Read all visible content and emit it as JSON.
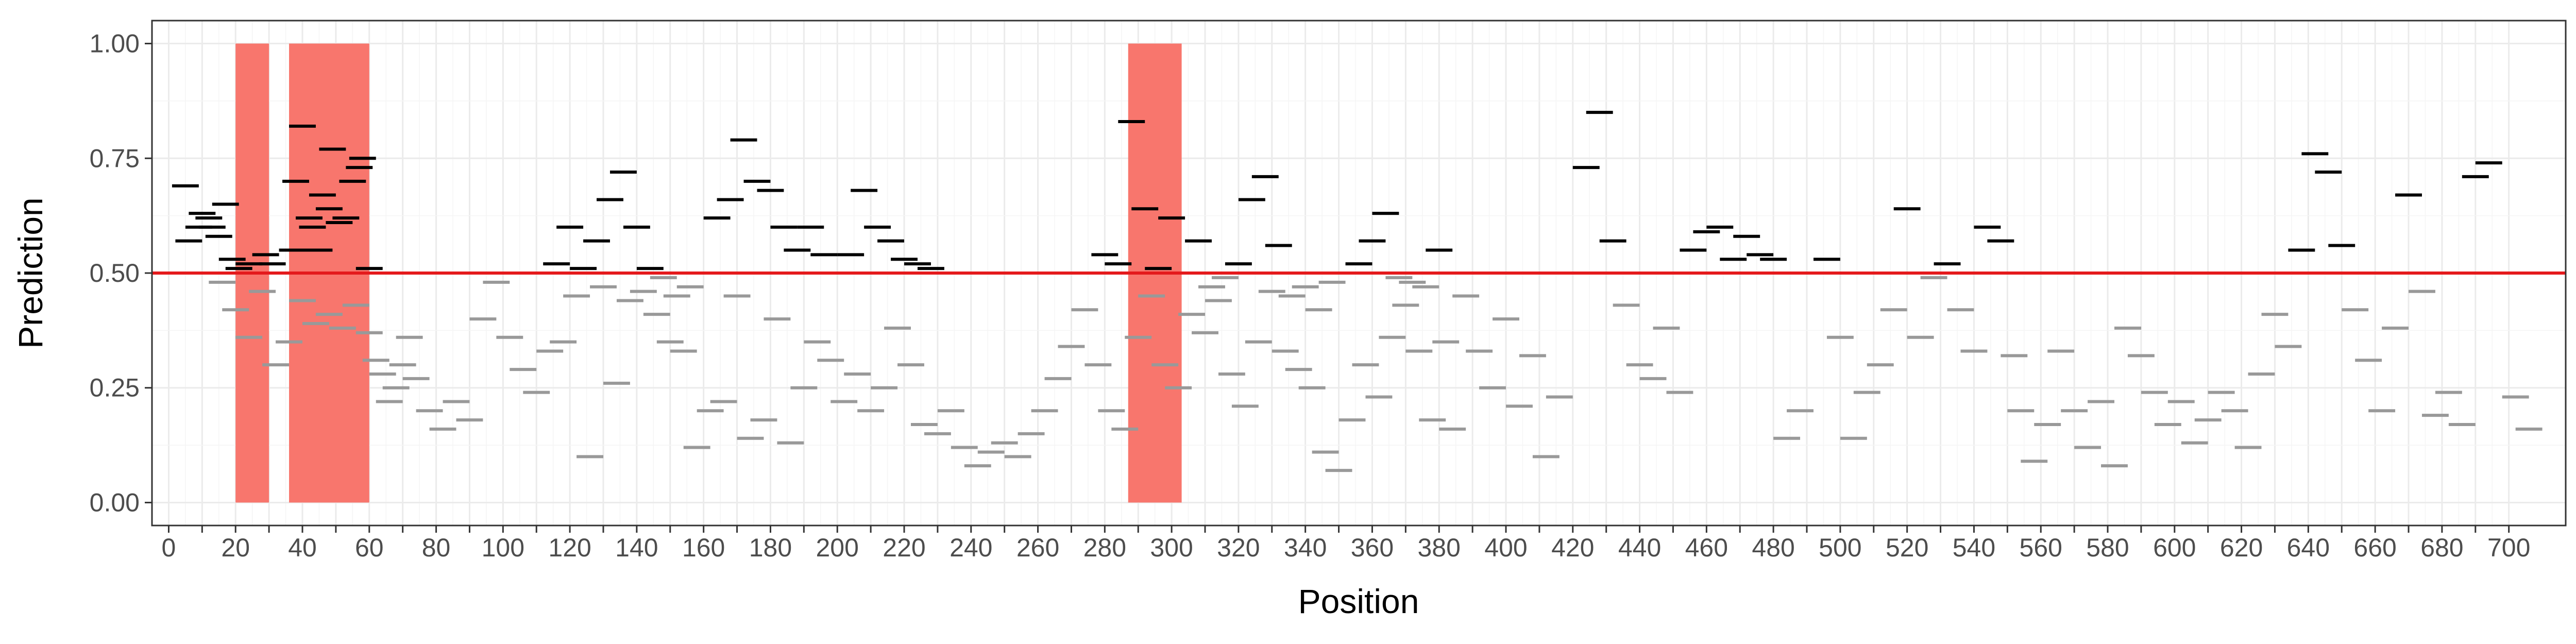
{
  "chart_data": {
    "type": "scatter",
    "title": "",
    "xlabel": "Position",
    "ylabel": "Prediction",
    "xlim": [
      -5,
      717
    ],
    "ylim": [
      -0.05,
      1.05
    ],
    "x_ticks": [
      0,
      10,
      20,
      30,
      40,
      50,
      60,
      70,
      80,
      90,
      100,
      110,
      120,
      130,
      140,
      150,
      160,
      170,
      180,
      190,
      200,
      210,
      220,
      230,
      240,
      250,
      260,
      270,
      280,
      290,
      300,
      310,
      320,
      330,
      340,
      350,
      360,
      370,
      380,
      390,
      400,
      410,
      420,
      430,
      440,
      450,
      460,
      470,
      480,
      490,
      500,
      510,
      520,
      530,
      540,
      550,
      560,
      570,
      580,
      590,
      600,
      610,
      620,
      630,
      640,
      650,
      660,
      670,
      680,
      690,
      700
    ],
    "x_tick_labels": [
      "0",
      "",
      "20",
      "",
      "40",
      "",
      "60",
      "",
      "80",
      "",
      "100",
      "",
      "120",
      "",
      "140",
      "",
      "160",
      "",
      "180",
      "",
      "200",
      "",
      "220",
      "",
      "240",
      "",
      "260",
      "",
      "280",
      "",
      "300",
      "",
      "320",
      "",
      "340",
      "",
      "360",
      "",
      "380",
      "",
      "400",
      "",
      "420",
      "",
      "440",
      "",
      "460",
      "",
      "480",
      "",
      "500",
      "",
      "520",
      "",
      "540",
      "",
      "560",
      "",
      "580",
      "",
      "600",
      "",
      "620",
      "",
      "640",
      "",
      "660",
      "",
      "680",
      "",
      "700"
    ],
    "y_ticks": [
      0,
      0.25,
      0.5,
      0.75,
      1
    ],
    "y_tick_labels": [
      "0.00",
      "0.25",
      "0.50",
      "0.75",
      "1.00"
    ],
    "grid": true,
    "threshold": 0.5,
    "colors": {
      "above_threshold": "#000000",
      "below_threshold": "#999999",
      "threshold_line": "#e41a1c",
      "region": "#f8766d"
    },
    "highlight_regions": [
      [
        20,
        30
      ],
      [
        36,
        60
      ],
      [
        287,
        303
      ]
    ],
    "segment_width": 8,
    "series": [
      {
        "x": [
          5,
          9,
          12,
          15,
          19,
          24,
          29,
          37,
          40,
          43,
          46,
          49,
          53,
          57,
          60
        ],
        "y": [
          0.69,
          0.6,
          0.62,
          0.58,
          0.53,
          0.52,
          0.54,
          0.55,
          0.82,
          0.6,
          0.67,
          0.77,
          0.62,
          0.73,
          0.51
        ]
      },
      {
        "x": [
          6,
          10,
          13,
          17,
          21,
          26,
          31,
          38,
          42,
          45,
          48,
          51,
          55,
          58
        ],
        "y": [
          0.57,
          0.63,
          0.6,
          0.65,
          0.51,
          0.5,
          0.52,
          0.7,
          0.62,
          0.55,
          0.64,
          0.61,
          0.7,
          0.75
        ]
      },
      {
        "x": [
          16,
          20,
          24,
          28,
          32,
          36,
          40,
          44,
          48,
          52,
          56,
          60,
          64,
          68,
          72
        ],
        "y": [
          0.48,
          0.42,
          0.36,
          0.46,
          0.3,
          0.35,
          0.44,
          0.39,
          0.41,
          0.38,
          0.43,
          0.37,
          0.28,
          0.25,
          0.36
        ]
      },
      {
        "x": [
          62,
          66,
          70,
          74,
          78,
          82,
          86,
          90,
          94,
          98,
          102,
          106,
          110,
          114
        ],
        "y": [
          0.31,
          0.22,
          0.3,
          0.27,
          0.2,
          0.16,
          0.22,
          0.18,
          0.4,
          0.48,
          0.36,
          0.29,
          0.24,
          0.33
        ]
      },
      {
        "x": [
          116,
          120,
          124,
          128,
          132,
          136,
          140,
          144,
          148,
          152,
          156,
          160,
          164,
          168,
          172,
          176,
          180,
          184,
          188,
          192,
          196,
          200,
          204,
          208,
          212,
          216,
          220,
          224,
          228
        ],
        "y": [
          0.52,
          0.6,
          0.51,
          0.57,
          0.66,
          0.72,
          0.6,
          0.51,
          0.49,
          0.45,
          0.47,
          0.5,
          0.62,
          0.66,
          0.79,
          0.7,
          0.68,
          0.6,
          0.55,
          0.6,
          0.54,
          0.5,
          0.54,
          0.68,
          0.6,
          0.57,
          0.53,
          0.52,
          0.51
        ]
      },
      {
        "x": [
          118,
          122,
          126,
          130,
          134,
          138,
          142,
          146,
          150,
          154,
          158,
          162,
          166,
          170,
          174,
          178,
          182,
          186,
          190,
          194,
          198,
          202,
          206,
          210,
          214,
          218,
          222,
          226
        ],
        "y": [
          0.35,
          0.45,
          0.1,
          0.47,
          0.26,
          0.44,
          0.46,
          0.41,
          0.35,
          0.33,
          0.12,
          0.2,
          0.22,
          0.45,
          0.14,
          0.18,
          0.4,
          0.13,
          0.25,
          0.35,
          0.31,
          0.22,
          0.28,
          0.2,
          0.25,
          0.38,
          0.3,
          0.17
        ]
      },
      {
        "x": [
          230,
          234,
          238,
          242,
          246,
          250,
          254,
          258,
          262,
          266,
          270,
          274,
          278,
          282,
          286,
          290,
          294,
          298,
          302,
          306,
          310,
          314,
          318,
          322,
          326,
          330,
          334,
          338,
          342,
          346,
          350,
          354,
          358,
          362,
          366,
          370,
          374,
          378,
          382
        ],
        "y": [
          0.15,
          0.2,
          0.12,
          0.08,
          0.11,
          0.13,
          0.1,
          0.15,
          0.2,
          0.27,
          0.34,
          0.42,
          0.3,
          0.2,
          0.16,
          0.36,
          0.45,
          0.3,
          0.25,
          0.41,
          0.37,
          0.44,
          0.28,
          0.21,
          0.35,
          0.46,
          0.33,
          0.29,
          0.25,
          0.11,
          0.07,
          0.18,
          0.3,
          0.23,
          0.36,
          0.43,
          0.33,
          0.18,
          0.35
        ]
      },
      {
        "x": [
          280,
          284,
          288,
          292,
          296,
          300,
          304,
          308,
          312,
          316,
          320,
          324,
          328,
          332,
          336,
          340,
          344,
          348,
          352,
          356,
          360,
          364,
          368,
          372,
          376,
          380
        ],
        "y": [
          0.54,
          0.52,
          0.83,
          0.64,
          0.51,
          0.62,
          0.5,
          0.57,
          0.47,
          0.49,
          0.52,
          0.66,
          0.71,
          0.56,
          0.45,
          0.47,
          0.42,
          0.48,
          0.5,
          0.52,
          0.57,
          0.63,
          0.49,
          0.48,
          0.47,
          0.55
        ]
      },
      {
        "x": [
          384,
          388,
          392,
          396,
          400,
          404,
          408,
          412,
          416,
          420,
          424,
          428,
          432,
          436,
          440,
          444,
          448,
          452,
          456,
          460,
          464,
          468,
          472,
          476,
          480,
          484,
          488,
          492,
          496,
          500,
          504,
          508,
          512,
          516,
          520,
          524,
          528,
          532,
          536,
          540,
          544,
          548,
          552
        ],
        "y": [
          0.16,
          0.45,
          0.33,
          0.25,
          0.4,
          0.21,
          0.32,
          0.1,
          0.23,
          0.5,
          0.73,
          0.85,
          0.57,
          0.43,
          0.3,
          0.27,
          0.38,
          0.24,
          0.55,
          0.59,
          0.6,
          0.53,
          0.58,
          0.54,
          0.53,
          0.14,
          0.2,
          0.5,
          0.53,
          0.36,
          0.14,
          0.24,
          0.3,
          0.42,
          0.64,
          0.36,
          0.49,
          0.52,
          0.42,
          0.33,
          0.6,
          0.57,
          0.32
        ]
      },
      {
        "x": [
          554,
          558,
          562,
          566,
          570,
          574,
          578,
          582,
          586,
          590,
          594,
          598,
          602,
          606,
          610,
          614,
          618,
          622,
          626,
          630,
          634,
          638,
          642,
          646,
          650,
          654,
          658,
          662,
          666,
          670,
          674,
          678,
          682,
          686,
          690,
          694,
          698,
          702,
          706
        ],
        "y": [
          0.2,
          0.09,
          0.17,
          0.33,
          0.2,
          0.12,
          0.22,
          0.08,
          0.38,
          0.32,
          0.24,
          0.17,
          0.22,
          0.13,
          0.18,
          0.24,
          0.2,
          0.12,
          0.28,
          0.41,
          0.34,
          0.55,
          0.76,
          0.72,
          0.56,
          0.42,
          0.31,
          0.2,
          0.38,
          0.67,
          0.46,
          0.19,
          0.24,
          0.17,
          0.71,
          0.74,
          0.5,
          0.23,
          0.16
        ]
      }
    ]
  }
}
